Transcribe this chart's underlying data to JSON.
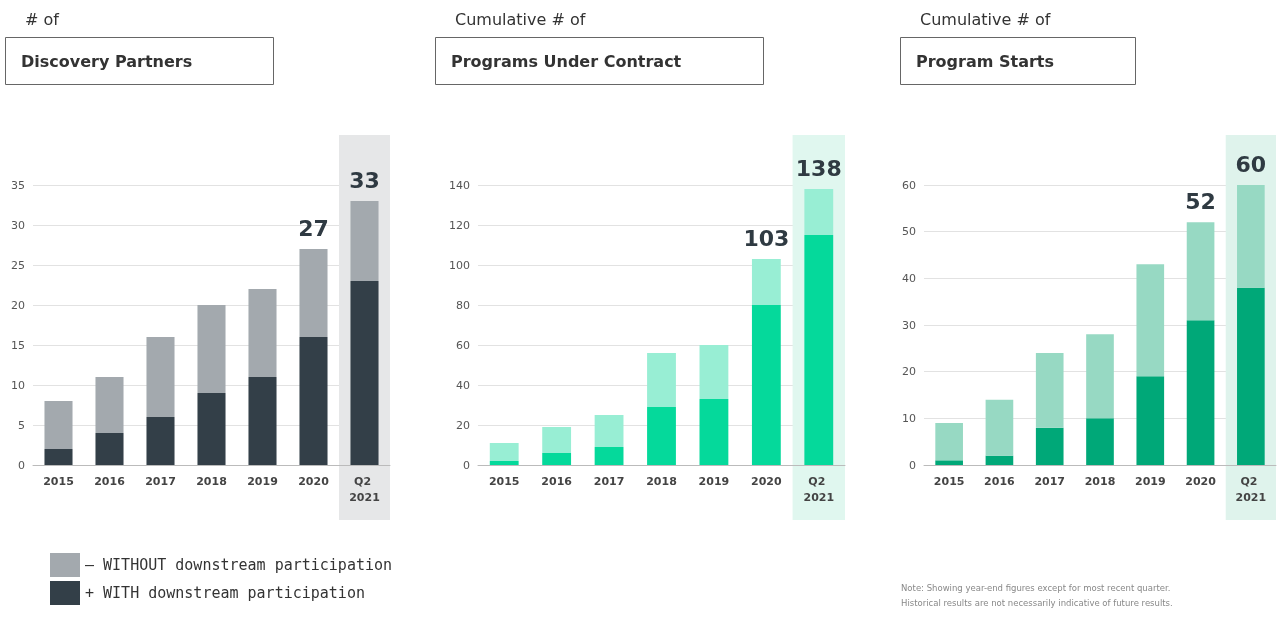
{
  "chart_data": [
    {
      "type": "bar",
      "subtitle": "# of",
      "title": "Discovery Partners",
      "categories": [
        "2015",
        "2016",
        "2017",
        "2018",
        "2019",
        "2020",
        "Q2 2021"
      ],
      "stacked": true,
      "series": [
        {
          "name": "+ WITH downstream participation",
          "color": "#333f48",
          "values": [
            2,
            4,
            6,
            9,
            11,
            16,
            23
          ]
        },
        {
          "name": "– WITHOUT downstream participation",
          "color": "#a3a9ae",
          "values": [
            6,
            7,
            10,
            11,
            11,
            11,
            10
          ]
        }
      ],
      "totals": [
        null,
        null,
        null,
        null,
        null,
        "27",
        "33"
      ],
      "bands": [
        {
          "axis": "x",
          "from": "Q2 2021",
          "to": "Q2 2021",
          "color": "#e6e7e8"
        }
      ],
      "ylim": [
        0,
        35
      ],
      "yticks": [
        0,
        5,
        10,
        15,
        20,
        25,
        30,
        35
      ],
      "grid": "y",
      "legend": "bottom left"
    },
    {
      "type": "bar",
      "subtitle": "Cumulative # of",
      "title": "Programs Under Contract",
      "categories": [
        "2015",
        "2016",
        "2017",
        "2018",
        "2019",
        "2020",
        "Q2 2021"
      ],
      "stacked": true,
      "series": [
        {
          "color": "#05d99b",
          "values": [
            2,
            6,
            9,
            29,
            33,
            80,
            115
          ]
        },
        {
          "color": "#98eed4",
          "values": [
            9,
            13,
            16,
            27,
            27,
            23,
            23
          ]
        }
      ],
      "totals": [
        null,
        null,
        null,
        null,
        null,
        "103",
        "138"
      ],
      "bands": [
        {
          "axis": "x",
          "from": "Q2 2021",
          "to": "Q2 2021",
          "color": "#e0f7ef"
        }
      ],
      "ylim": [
        0,
        140
      ],
      "yticks": [
        0,
        20,
        40,
        60,
        80,
        100,
        120,
        140
      ],
      "grid": "y"
    },
    {
      "type": "bar",
      "subtitle": "Cumulative # of",
      "title": "Program Starts",
      "categories": [
        "2015",
        "2016",
        "2017",
        "2018",
        "2019",
        "2020",
        "Q2 2021"
      ],
      "stacked": true,
      "series": [
        {
          "color": "#00a878",
          "values": [
            1,
            2,
            8,
            10,
            19,
            31,
            38
          ]
        },
        {
          "color": "#97d9c3",
          "values": [
            8,
            12,
            16,
            18,
            24,
            21,
            22
          ]
        }
      ],
      "totals": [
        null,
        null,
        null,
        null,
        null,
        "52",
        "60"
      ],
      "bands": [
        {
          "axis": "x",
          "from": "Q2 2021",
          "to": "Q2 2021",
          "color": "#dff3ec"
        }
      ],
      "ylim": [
        0,
        60
      ],
      "yticks": [
        0,
        10,
        20,
        30,
        40,
        50,
        60
      ],
      "grid": "y",
      "annotations": [
        "Note: Showing year-end figures except for most recent quarter. Historical results are not necessarily indicative of future results."
      ]
    }
  ]
}
